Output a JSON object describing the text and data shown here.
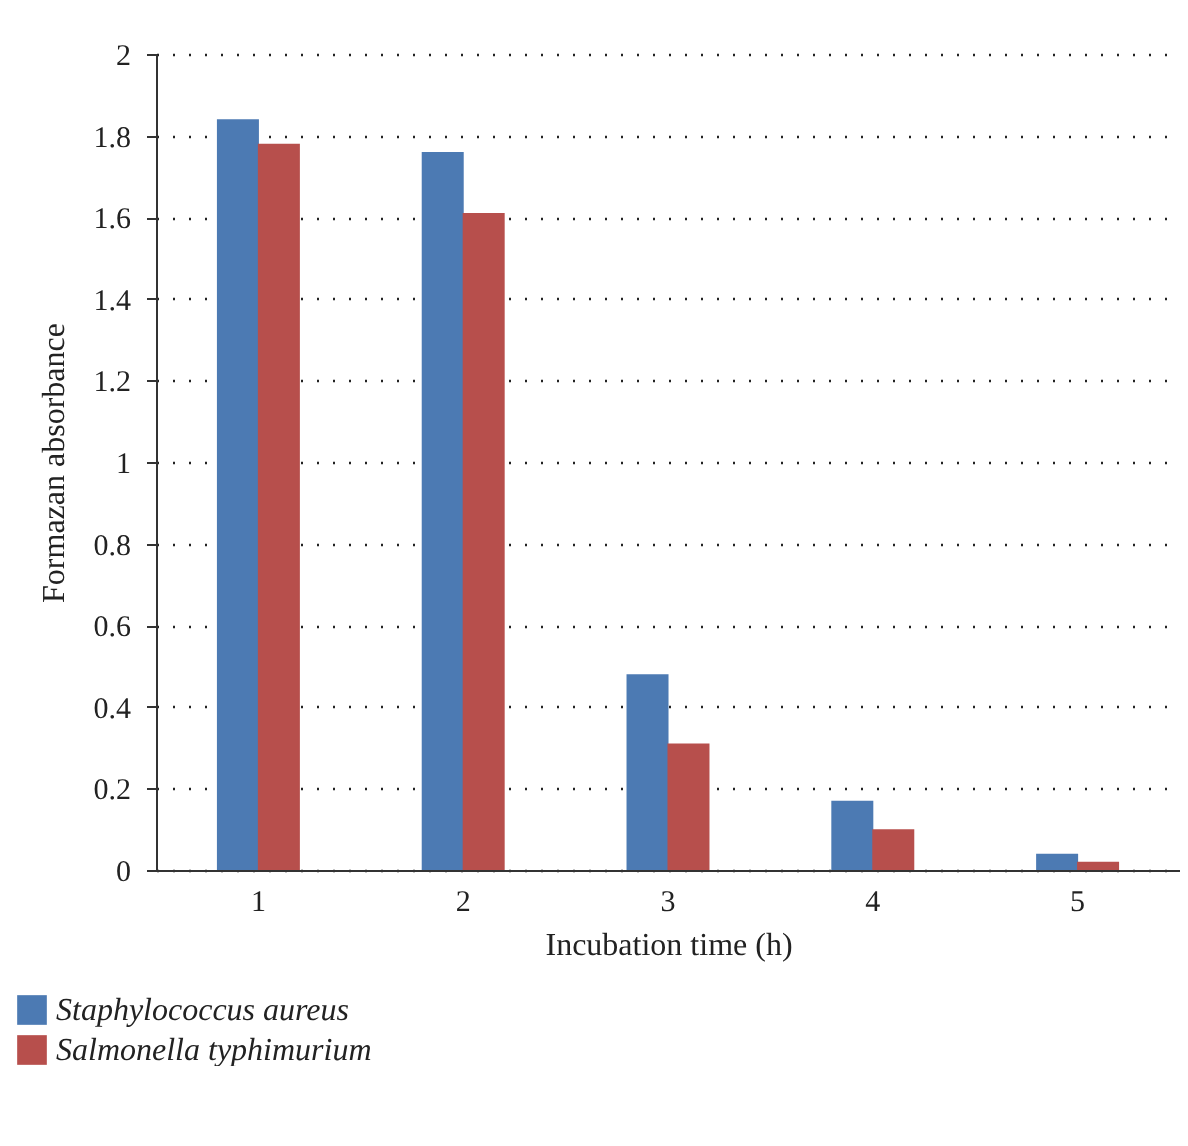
{
  "chart_data": {
    "type": "bar",
    "xlabel": "Incubation time (h)",
    "ylabel": "Formazan absorbance",
    "categories": [
      "1",
      "2",
      "3",
      "4",
      "5"
    ],
    "series": [
      {
        "name": "Staphylococcus aureus",
        "color": "#4c7ab3",
        "values": [
          1.84,
          1.76,
          0.48,
          0.17,
          0.04
        ]
      },
      {
        "name": "Salmonella typhimurium",
        "color": "#b74f4c",
        "values": [
          1.78,
          1.61,
          0.31,
          0.1,
          0.02
        ]
      }
    ],
    "ylim": [
      0,
      2
    ],
    "yticks": [
      0,
      0.2,
      0.4,
      0.6,
      0.8,
      1,
      1.2,
      1.4,
      1.6,
      1.8,
      2
    ],
    "grid": "y",
    "legend": "bottom left"
  }
}
